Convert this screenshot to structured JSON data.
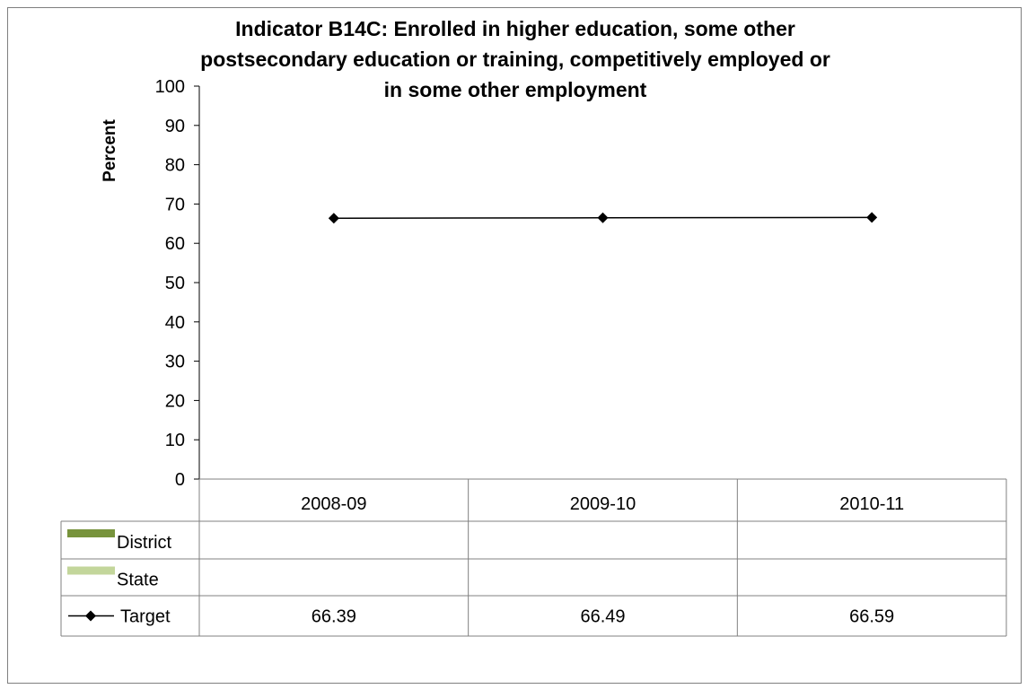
{
  "chart_data": {
    "type": "line",
    "title_lines": [
      "Indicator B14C: Enrolled in higher education, some other",
      "postsecondary education or training, competitively employed or",
      "in some other employment"
    ],
    "ylabel": "Percent",
    "xlabel": "",
    "ylim": [
      0,
      100
    ],
    "yticks": [
      0,
      10,
      20,
      30,
      40,
      50,
      60,
      70,
      80,
      90,
      100
    ],
    "categories": [
      "2008-09",
      "2009-10",
      "2010-11"
    ],
    "series": [
      {
        "name": "District",
        "values": [
          null,
          null,
          null
        ],
        "color": "#77933c",
        "marker": "bar"
      },
      {
        "name": "State",
        "values": [
          null,
          null,
          null
        ],
        "color": "#c3d69b",
        "marker": "bar"
      },
      {
        "name": "Target",
        "values": [
          66.39,
          66.49,
          66.59
        ],
        "color": "#000000",
        "marker": "diamond"
      }
    ],
    "data_table": {
      "rows": [
        {
          "name": "District",
          "cells": [
            "",
            "",
            ""
          ]
        },
        {
          "name": "State",
          "cells": [
            "",
            "",
            ""
          ]
        },
        {
          "name": "Target",
          "cells": [
            "66.39",
            "66.49",
            "66.59"
          ]
        }
      ]
    },
    "grid": false,
    "legend": "data-table"
  }
}
